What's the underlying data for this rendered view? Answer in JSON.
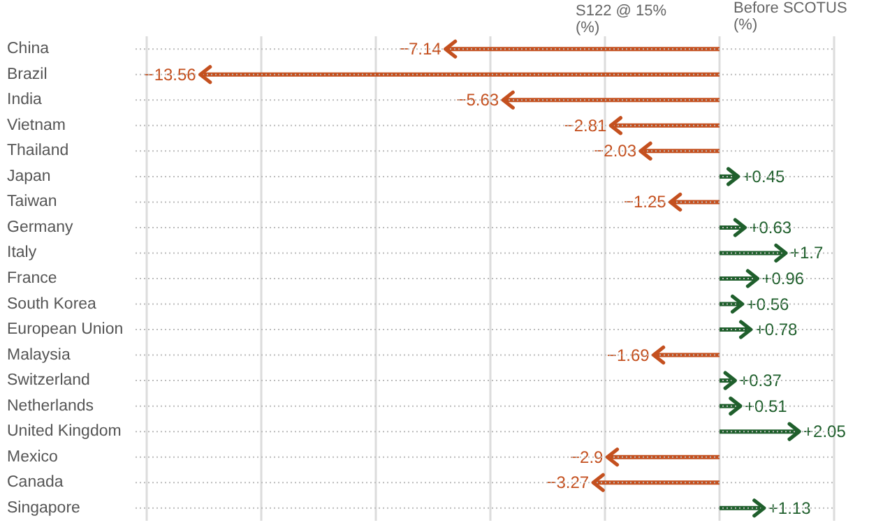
{
  "chart_data": {
    "type": "bar",
    "orientation": "horizontal",
    "categories": [
      "China",
      "Brazil",
      "India",
      "Vietnam",
      "Thailand",
      "Japan",
      "Taiwan",
      "Germany",
      "Italy",
      "France",
      "South Korea",
      "European Union",
      "Malaysia",
      "Switzerland",
      "Netherlands",
      "United Kingdom",
      "Mexico",
      "Canada",
      "Singapore"
    ],
    "values": [
      -7.14,
      -13.56,
      -5.63,
      -2.81,
      -2.03,
      0.45,
      -1.25,
      0.63,
      1.7,
      0.96,
      0.56,
      0.78,
      -1.69,
      0.37,
      0.51,
      2.05,
      -2.9,
      -3.27,
      1.13
    ],
    "value_labels": [
      "−7.14",
      "−13.56",
      "−5.63",
      "−2.81",
      "−2.03",
      "+0.45",
      "−1.25",
      "+0.63",
      "+1.7",
      "+0.96",
      "+0.56",
      "+0.78",
      "−1.69",
      "+0.37",
      "+0.51",
      "+2.05",
      "−2.9",
      "−3.27",
      "+1.13"
    ],
    "colors": [
      "#c4501f",
      "#c4501f",
      "#c4501f",
      "#c4501f",
      "#c4501f",
      "#1f5f2c",
      "#c4501f",
      "#1f5f2c",
      "#1f5f2c",
      "#1f5f2c",
      "#1f5f2c",
      "#1f5f2c",
      "#c4501f",
      "#1f5f2c",
      "#1f5f2c",
      "#1f5f2c",
      "#c4501f",
      "#c4501f",
      "#1f5f2c"
    ],
    "tick_labels": "y",
    "grid": true,
    "annotations": [
      "S122 @ 15% (%)",
      "Before SCOTUS (%)"
    ]
  }
}
